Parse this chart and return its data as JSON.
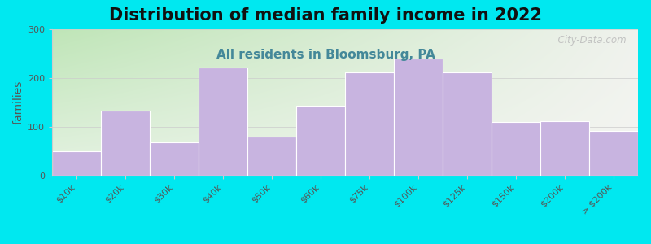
{
  "title": "Distribution of median family income in 2022",
  "subtitle": "All residents in Bloomsburg, PA",
  "categories": [
    "$10k",
    "$20k",
    "$30k",
    "$40k",
    "$50k",
    "$60k",
    "$75k",
    "$100k",
    "$125k",
    "$150k",
    "$200k",
    "> $200k"
  ],
  "values": [
    50,
    133,
    68,
    222,
    80,
    143,
    212,
    240,
    212,
    110,
    112,
    92
  ],
  "bar_color": "#c8b4e0",
  "bar_edge_color": "#ffffff",
  "background_outer": "#00e8f0",
  "plot_bg_topleft": "#c8e8c0",
  "plot_bg_right": "#f0f0eb",
  "title_fontsize": 15,
  "subtitle_fontsize": 11,
  "subtitle_color": "#448899",
  "ylabel": "families",
  "ylabel_fontsize": 10,
  "ylim": [
    0,
    300
  ],
  "yticks": [
    0,
    100,
    200,
    300
  ],
  "watermark": "  City-Data.com",
  "watermark_color": "#bbbbbb"
}
